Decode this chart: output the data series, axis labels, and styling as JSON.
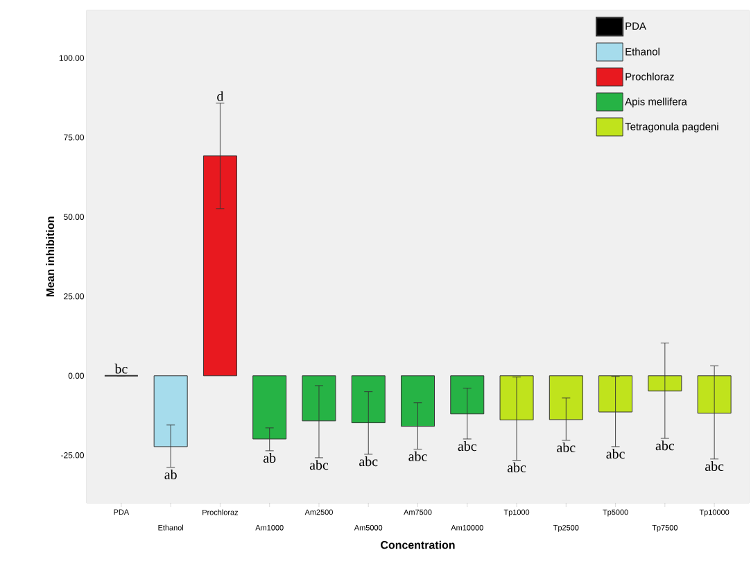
{
  "chart_data": {
    "type": "bar",
    "xlabel": "Concentration",
    "ylabel": "Mean inhibition",
    "categories": [
      "PDA",
      "Ethanol",
      "Prochloraz",
      "Am1000",
      "Am2500",
      "Am5000",
      "Am7500",
      "Am10000",
      "Tp1000",
      "Tp2500",
      "Tp5000",
      "Tp7500",
      "Tp10000"
    ],
    "series": [
      {
        "name": "PDA",
        "color": "#000000",
        "values": [
          0,
          null,
          null,
          null,
          null,
          null,
          null,
          null,
          null,
          null,
          null,
          null,
          null
        ],
        "errors": [
          null,
          null,
          null,
          null,
          null,
          null,
          null,
          null,
          null,
          null,
          null,
          null,
          null
        ]
      },
      {
        "name": "Ethanol",
        "color": "#a6dcec",
        "values": [
          null,
          -22.3,
          null,
          null,
          null,
          null,
          null,
          null,
          null,
          null,
          null,
          null,
          null
        ],
        "errors": [
          null,
          [
            -28.8,
            -15.5
          ],
          null,
          null,
          null,
          null,
          null,
          null,
          null,
          null,
          null,
          null,
          null
        ]
      },
      {
        "name": "Prochloraz",
        "color": "#e8191f",
        "values": [
          null,
          null,
          69.2,
          null,
          null,
          null,
          null,
          null,
          null,
          null,
          null,
          null,
          null
        ],
        "errors": [
          null,
          null,
          [
            52.6,
            85.8
          ],
          null,
          null,
          null,
          null,
          null,
          null,
          null,
          null,
          null,
          null
        ]
      },
      {
        "name": "Apis mellifera",
        "color": "#26b345",
        "values": [
          null,
          null,
          null,
          -19.9,
          -14.2,
          -14.8,
          -15.9,
          -12.0,
          null,
          null,
          null,
          null,
          null
        ],
        "errors": [
          null,
          null,
          null,
          [
            -23.6,
            -16.4
          ],
          [
            -25.8,
            -3.1
          ],
          [
            -24.7,
            -5.0
          ],
          [
            -23.1,
            -8.5
          ],
          [
            -19.9,
            -3.9
          ],
          null,
          null,
          null,
          null,
          null
        ]
      },
      {
        "name": "Tetragonula pagdeni",
        "color": "#c0e31c",
        "values": [
          null,
          null,
          null,
          null,
          null,
          null,
          null,
          null,
          -13.9,
          -13.8,
          -11.4,
          -4.8,
          -11.8
        ],
        "errors": [
          null,
          null,
          null,
          null,
          null,
          null,
          null,
          null,
          [
            -26.6,
            -0.4
          ],
          [
            -20.3,
            -7.0
          ],
          [
            -22.3,
            -0.2
          ],
          [
            -19.7,
            10.3
          ],
          [
            -26.2,
            3.1
          ]
        ]
      }
    ],
    "ylim": [
      -40,
      115
    ],
    "yticks": [
      {
        "value": -25,
        "label": "-25.00"
      },
      {
        "value": 0,
        "label": "0.00"
      },
      {
        "value": 25,
        "label": "25.00"
      },
      {
        "value": 50,
        "label": "50.00"
      },
      {
        "value": 75,
        "label": "75.00"
      },
      {
        "value": 100,
        "label": "100.00"
      }
    ],
    "legend": "top right",
    "annotations": [
      {
        "text": "bc",
        "x": "PDA",
        "y": 0
      },
      {
        "text": "ab",
        "x": "Ethanol",
        "y": -28.8
      },
      {
        "text": "d",
        "x": "Prochloraz",
        "y": 85.8
      },
      {
        "text": "ab",
        "x": "Am1000",
        "y": -23.6
      },
      {
        "text": "abc",
        "x": "Am2500",
        "y": -25.8
      },
      {
        "text": "abc",
        "x": "Am5000",
        "y": -24.7
      },
      {
        "text": "abc",
        "x": "Am7500",
        "y": -23.1
      },
      {
        "text": "abc",
        "x": "Am10000",
        "y": -19.9
      },
      {
        "text": "abc",
        "x": "Tp1000",
        "y": -26.6
      },
      {
        "text": "abc",
        "x": "Tp2500",
        "y": -20.3
      },
      {
        "text": "abc",
        "x": "Tp5000",
        "y": -22.3
      },
      {
        "text": "abc",
        "x": "Tp7500",
        "y": -19.7
      },
      {
        "text": "abc",
        "x": "Tp10000",
        "y": -26.2
      }
    ]
  }
}
